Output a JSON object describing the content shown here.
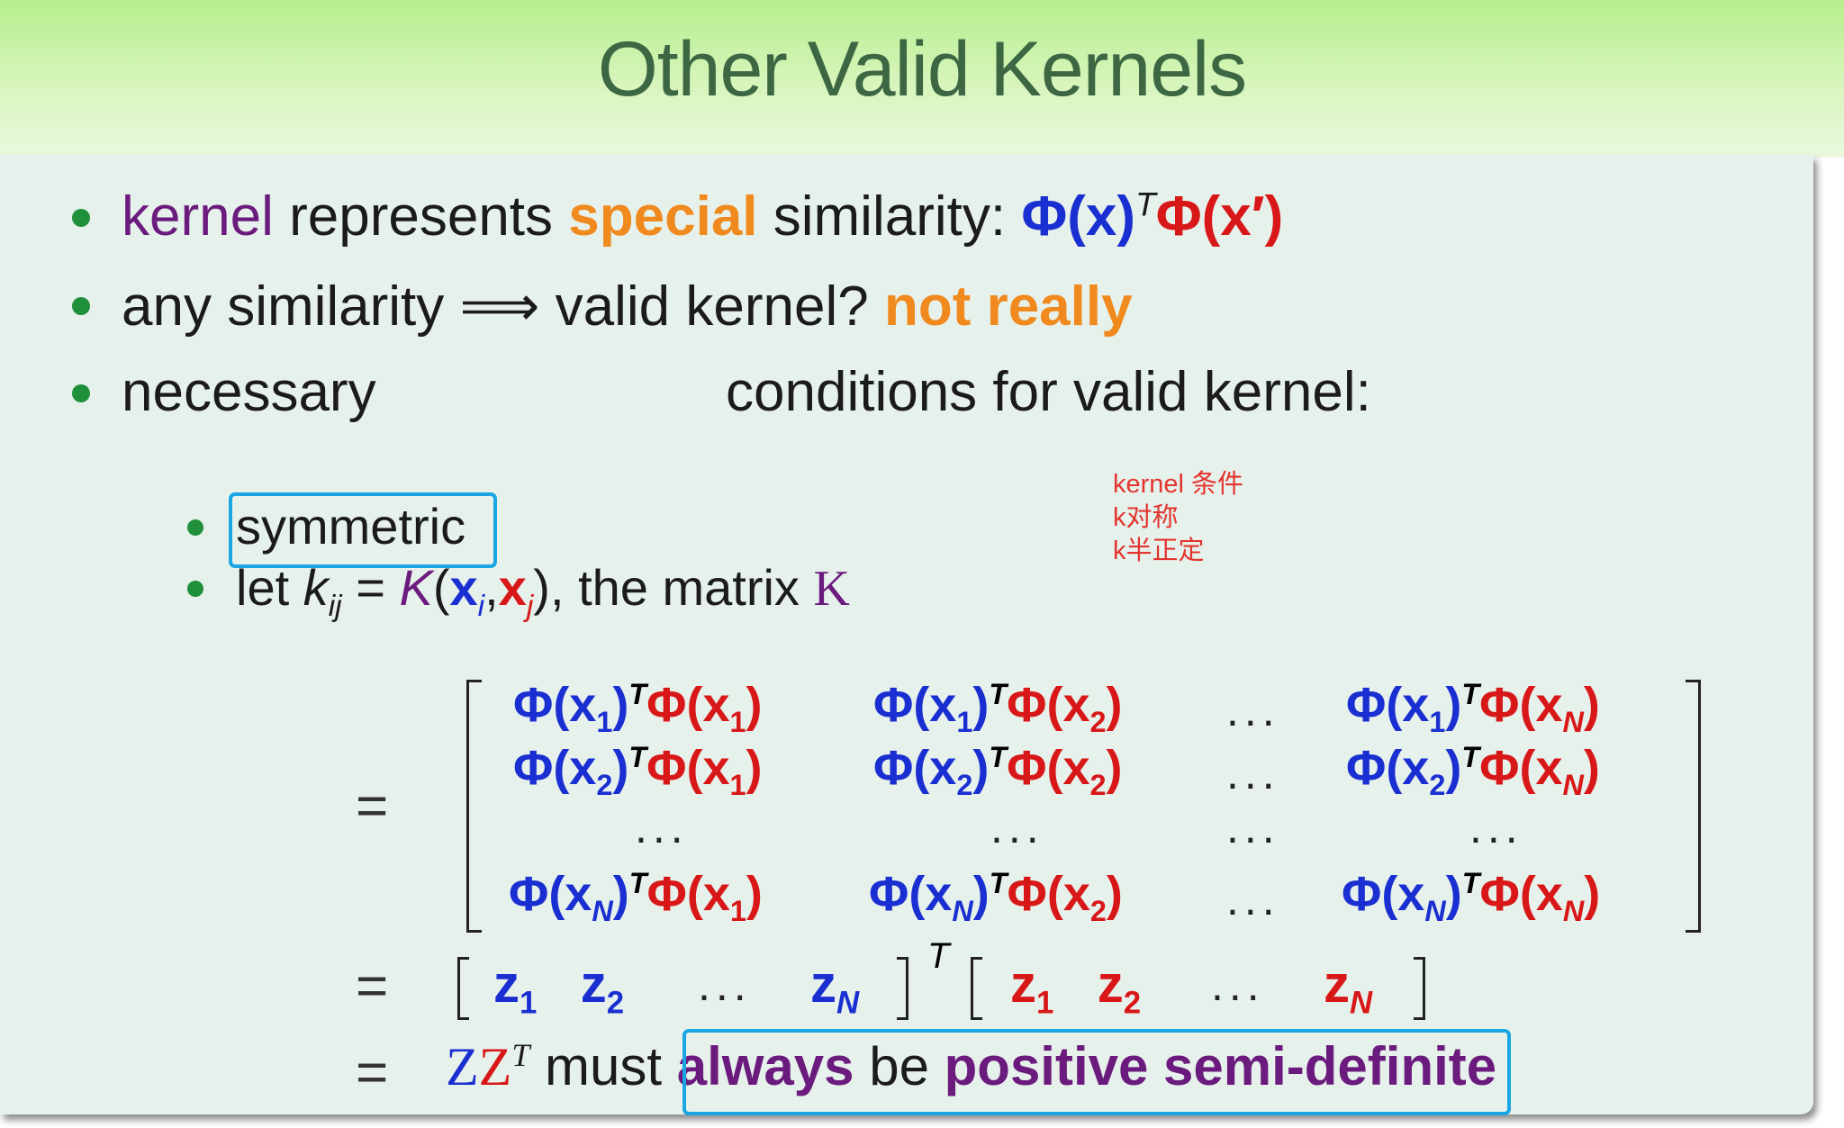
{
  "slide": {
    "title": "Other Valid Kernels",
    "bullets": {
      "b1": {
        "kernel": "kernel",
        "represents": "represents",
        "special": "special",
        "similarity": "similarity:"
      },
      "b2": {
        "text": "any similarity ⟹ valid kernel?",
        "emph": "not really"
      },
      "b3": {
        "left": "necessary",
        "right": "conditions for valid kernel:"
      },
      "sub1": "symmetric",
      "sub2": {
        "lead": "let",
        "tail": ", the matrix"
      }
    },
    "annotation": {
      "line1": "kernel 条件",
      "line2": "k对称",
      "line3": "k半正定"
    },
    "final": {
      "must": "must",
      "always": "always",
      "be": "be",
      "psd": "positive semi-definite"
    },
    "ellipsis": "..."
  },
  "colors": {
    "header_top": "#b7ee8d",
    "panel_bg": "#e7f1eb",
    "title_text": "#3d6643",
    "bullet": "#1f8f3c",
    "purple": "#6b1b7d",
    "orange": "#f08a1e",
    "blue": "#1a2fd1",
    "red": "#d81818",
    "highlight_box": "#1aa6e3",
    "annotation": "#e3342f"
  }
}
